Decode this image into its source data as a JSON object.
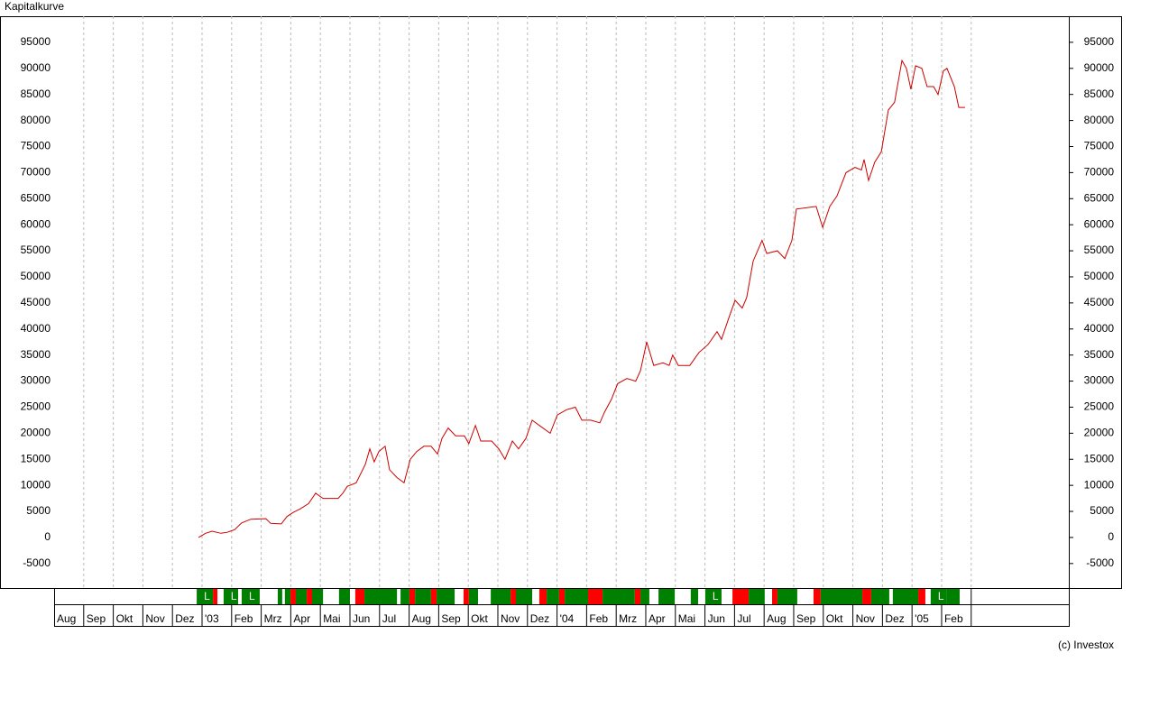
{
  "chart_data": {
    "type": "line",
    "title": "Kapitalkurve",
    "credit": "(c) Investox",
    "xlim": [
      0,
      34.3
    ],
    "ylim": [
      -9700,
      100000
    ],
    "yticks": [
      -5000,
      0,
      5000,
      10000,
      15000,
      20000,
      25000,
      30000,
      35000,
      40000,
      45000,
      50000,
      55000,
      60000,
      65000,
      70000,
      75000,
      80000,
      85000,
      90000,
      95000
    ],
    "xticks": [
      {
        "value": 0,
        "label": "Aug"
      },
      {
        "value": 1,
        "label": "Sep"
      },
      {
        "value": 2,
        "label": "Okt"
      },
      {
        "value": 3,
        "label": "Nov"
      },
      {
        "value": 4,
        "label": "Dez"
      },
      {
        "value": 5,
        "label": "'03"
      },
      {
        "value": 6,
        "label": "Feb"
      },
      {
        "value": 7,
        "label": "Mrz"
      },
      {
        "value": 8,
        "label": "Apr"
      },
      {
        "value": 9,
        "label": "Mai"
      },
      {
        "value": 10,
        "label": "Jun"
      },
      {
        "value": 11,
        "label": "Jul"
      },
      {
        "value": 12,
        "label": "Aug"
      },
      {
        "value": 13,
        "label": "Sep"
      },
      {
        "value": 14,
        "label": "Okt"
      },
      {
        "value": 15,
        "label": "Nov"
      },
      {
        "value": 16,
        "label": "Dez"
      },
      {
        "value": 17,
        "label": "'04"
      },
      {
        "value": 18,
        "label": "Feb"
      },
      {
        "value": 19,
        "label": "Mrz"
      },
      {
        "value": 20,
        "label": "Apr"
      },
      {
        "value": 21,
        "label": "Mai"
      },
      {
        "value": 22,
        "label": "Jun"
      },
      {
        "value": 23,
        "label": "Jul"
      },
      {
        "value": 24,
        "label": "Aug"
      },
      {
        "value": 25,
        "label": "Sep"
      },
      {
        "value": 26,
        "label": "Okt"
      },
      {
        "value": 27,
        "label": "Nov"
      },
      {
        "value": 28,
        "label": "Dez"
      },
      {
        "value": 29,
        "label": "'05"
      },
      {
        "value": 30,
        "label": "Feb"
      }
    ],
    "grid": "x",
    "series": [
      {
        "color": "#cc0000",
        "x": [
          4.88,
          5.12,
          5.34,
          5.64,
          5.85,
          6.1,
          6.34,
          6.65,
          7.16,
          7.32,
          7.68,
          7.87,
          8.08,
          8.32,
          8.6,
          8.84,
          9.09,
          9.6,
          9.76,
          9.91,
          10.21,
          10.52,
          10.67,
          10.82,
          10.98,
          11.19,
          11.34,
          11.59,
          11.83,
          12.04,
          12.26,
          12.5,
          12.74,
          12.96,
          13.11,
          13.32,
          13.57,
          13.87,
          14.02,
          14.24,
          14.42,
          14.79,
          15.03,
          15.24,
          15.49,
          15.7,
          15.95,
          16.16,
          16.4,
          16.77,
          17.01,
          17.32,
          17.62,
          17.84,
          18.14,
          18.45,
          18.6,
          18.84,
          19.05,
          19.36,
          19.66,
          19.82,
          20.03,
          20.27,
          20.58,
          20.79,
          20.91,
          21.1,
          21.49,
          21.8,
          22.1,
          22.41,
          22.56,
          22.8,
          23.02,
          23.26,
          23.41,
          23.63,
          23.93,
          24.09,
          24.45,
          24.7,
          24.94,
          25.09,
          25.76,
          25.98,
          26.22,
          26.46,
          26.77,
          27.07,
          27.29,
          27.38,
          27.53,
          27.74,
          27.96,
          28.2,
          28.41,
          28.66,
          28.81,
          28.96,
          29.12,
          29.33,
          29.51,
          29.73,
          29.88,
          30.06,
          30.18,
          30.43,
          30.58,
          30.79
        ],
        "values": [
          0,
          800,
          1200,
          800,
          1000,
          1500,
          2800,
          3500,
          3600,
          2700,
          2600,
          4000,
          4800,
          5500,
          6500,
          8500,
          7500,
          7500,
          8500,
          9800,
          10500,
          14000,
          17000,
          14500,
          16500,
          17500,
          13000,
          11500,
          10500,
          15000,
          16500,
          17500,
          17500,
          16000,
          19000,
          21000,
          19500,
          19500,
          18000,
          21500,
          18500,
          18500,
          17000,
          15000,
          18500,
          17000,
          19000,
          22500,
          21500,
          20000,
          23500,
          24500,
          25000,
          22500,
          22500,
          22000,
          24000,
          26500,
          29500,
          30500,
          30000,
          32000,
          37500,
          33000,
          33500,
          33000,
          35000,
          33000,
          33000,
          35500,
          37000,
          39500,
          38000,
          42000,
          45500,
          44000,
          46000,
          53000,
          57000,
          54500,
          55000,
          53500,
          57000,
          63000,
          63500,
          59500,
          63500,
          65500,
          70000,
          71000,
          70500,
          72500,
          68500,
          72000,
          74000,
          82000,
          83500,
          91500,
          90000,
          86000,
          90500,
          90000,
          86500,
          86500,
          85000,
          89500,
          90000,
          86500,
          82500,
          82500
        ]
      }
    ],
    "strip": [
      {
        "start": 4.82,
        "end": 5.37,
        "color": "#008000",
        "label": "L"
      },
      {
        "start": 5.37,
        "end": 5.52,
        "color": "#ff0000"
      },
      {
        "start": 5.73,
        "end": 6.22,
        "color": "#008000",
        "label": "L"
      },
      {
        "start": 6.34,
        "end": 6.95,
        "color": "#008000",
        "label": "L"
      },
      {
        "start": 7.56,
        "end": 7.71,
        "color": "#008000"
      },
      {
        "start": 7.8,
        "end": 7.99,
        "color": "#008000"
      },
      {
        "start": 7.99,
        "end": 8.17,
        "color": "#ff0000"
      },
      {
        "start": 8.17,
        "end": 8.54,
        "color": "#008000"
      },
      {
        "start": 8.54,
        "end": 8.72,
        "color": "#ff0000"
      },
      {
        "start": 8.72,
        "end": 9.09,
        "color": "#008000"
      },
      {
        "start": 9.63,
        "end": 10.0,
        "color": "#008000"
      },
      {
        "start": 10.18,
        "end": 10.49,
        "color": "#ff0000"
      },
      {
        "start": 10.49,
        "end": 11.59,
        "color": "#008000"
      },
      {
        "start": 11.71,
        "end": 12.01,
        "color": "#008000"
      },
      {
        "start": 12.01,
        "end": 12.2,
        "color": "#ff0000"
      },
      {
        "start": 12.2,
        "end": 12.74,
        "color": "#008000"
      },
      {
        "start": 12.74,
        "end": 12.93,
        "color": "#ff0000"
      },
      {
        "start": 12.93,
        "end": 13.54,
        "color": "#008000"
      },
      {
        "start": 13.84,
        "end": 14.02,
        "color": "#ff0000"
      },
      {
        "start": 14.02,
        "end": 14.33,
        "color": "#008000"
      },
      {
        "start": 14.76,
        "end": 15.43,
        "color": "#008000"
      },
      {
        "start": 15.43,
        "end": 15.61,
        "color": "#ff0000"
      },
      {
        "start": 15.61,
        "end": 16.16,
        "color": "#008000"
      },
      {
        "start": 16.4,
        "end": 16.65,
        "color": "#ff0000"
      },
      {
        "start": 16.65,
        "end": 17.07,
        "color": "#008000"
      },
      {
        "start": 17.07,
        "end": 17.26,
        "color": "#ff0000"
      },
      {
        "start": 17.26,
        "end": 18.05,
        "color": "#008000"
      },
      {
        "start": 18.05,
        "end": 18.54,
        "color": "#ff0000"
      },
      {
        "start": 18.54,
        "end": 19.63,
        "color": "#008000"
      },
      {
        "start": 19.63,
        "end": 19.82,
        "color": "#ff0000"
      },
      {
        "start": 19.82,
        "end": 20.12,
        "color": "#008000"
      },
      {
        "start": 20.43,
        "end": 20.98,
        "color": "#008000"
      },
      {
        "start": 21.52,
        "end": 21.77,
        "color": "#008000"
      },
      {
        "start": 22.01,
        "end": 22.56,
        "color": "#008000",
        "label": "L"
      },
      {
        "start": 22.93,
        "end": 23.48,
        "color": "#ff0000"
      },
      {
        "start": 23.48,
        "end": 24.02,
        "color": "#008000"
      },
      {
        "start": 24.27,
        "end": 24.45,
        "color": "#ff0000"
      },
      {
        "start": 24.45,
        "end": 25.12,
        "color": "#008000"
      },
      {
        "start": 25.67,
        "end": 25.91,
        "color": "#ff0000"
      },
      {
        "start": 25.91,
        "end": 27.32,
        "color": "#008000"
      },
      {
        "start": 27.32,
        "end": 27.62,
        "color": "#ff0000"
      },
      {
        "start": 27.62,
        "end": 28.23,
        "color": "#008000"
      },
      {
        "start": 28.35,
        "end": 29.21,
        "color": "#008000"
      },
      {
        "start": 29.21,
        "end": 29.45,
        "color": "#ff0000"
      },
      {
        "start": 29.63,
        "end": 30.18,
        "color": "#008000",
        "label": "L"
      },
      {
        "start": 30.18,
        "end": 30.61,
        "color": "#008000"
      }
    ]
  }
}
